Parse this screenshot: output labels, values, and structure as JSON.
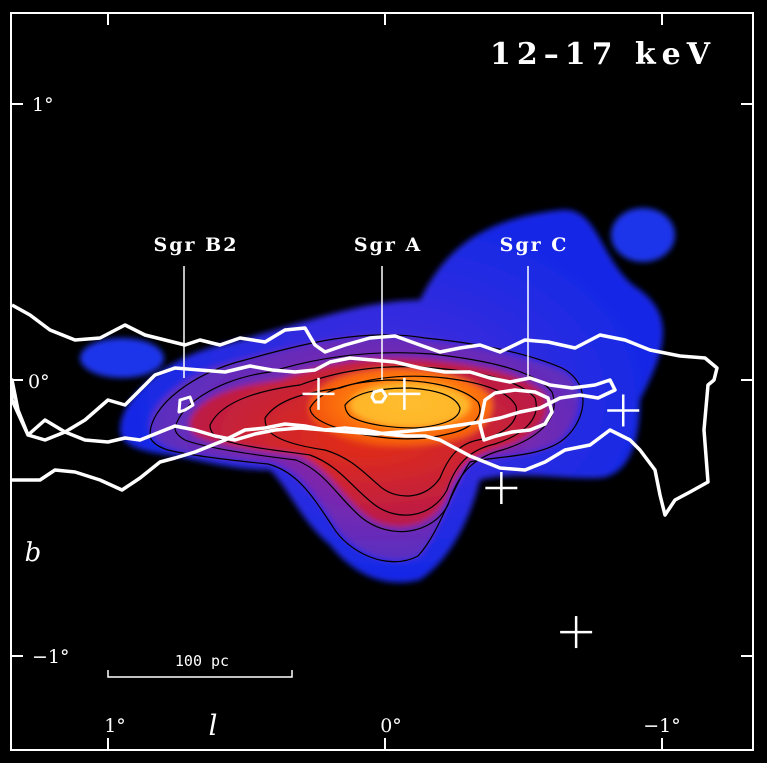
{
  "chart_data": {
    "type": "heatmap",
    "title": "12–17 keV",
    "xlabel": "l",
    "ylabel": "b",
    "x_ticks": [
      {
        "value": 1,
        "label": "1°"
      },
      {
        "value": 0,
        "label": "0°"
      },
      {
        "value": -1,
        "label": "−1°"
      }
    ],
    "y_ticks": [
      {
        "value": 1,
        "label": "1°"
      },
      {
        "value": 0,
        "label": "0°"
      },
      {
        "value": -1,
        "label": "−1°"
      }
    ],
    "xlim": [
      1.35,
      -1.35
    ],
    "ylim": [
      -1.35,
      1.35
    ],
    "scale_bar": {
      "label": "100 pc",
      "length_deg": 0.67
    },
    "sources": [
      {
        "label": "Sgr B2",
        "l": 0.67,
        "b": -0.03
      },
      {
        "label": "Sgr A",
        "l": -0.06,
        "b": -0.05
      },
      {
        "label": "Sgr C",
        "l": -0.56,
        "b": -0.09
      }
    ],
    "crosses": [
      {
        "l": 0.24,
        "b": -0.05
      },
      {
        "l": -0.07,
        "b": -0.05
      },
      {
        "l": -0.86,
        "b": -0.11
      },
      {
        "l": -0.42,
        "b": -0.39
      },
      {
        "l": -0.69,
        "b": -0.91
      }
    ],
    "colors": {
      "low": "#1e2ee8",
      "mid": "#c8102e",
      "high": "#ffb020",
      "background": "#000000",
      "contours": "#000000",
      "overlay": "#ffffff"
    }
  }
}
